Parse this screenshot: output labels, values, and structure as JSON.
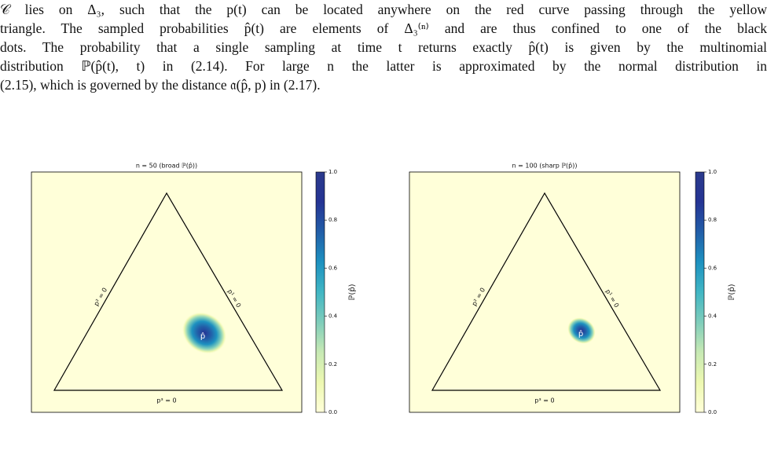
{
  "paragraph": {
    "lines": [
      "𝒞 lies on Δ₃, such that the p(t) can be located anywhere on the red curve passing through the yellow",
      "triangle. The sampled probabilities p̂(t) are elements of Δ₃⁽ⁿ⁾ and are thus confined to one of the black",
      "dots. The probability that a single sampling at time t returns exactly p̂(t) is given by the multinomial",
      "distribution ℙ(p̂(t), t) in (2.14). For large n the latter is approximated by the normal distribution in",
      "(2.15), which is governed by the distance 𝔞(p̂, p) in (2.17)."
    ]
  },
  "figures": [
    {
      "title": "n = 50 (broad ℙ(p̂))",
      "left_edge": "p² = 0",
      "right_edge": "p¹ = 0",
      "bottom_edge": "p³ = 0",
      "point": "p̂",
      "colorbar": {
        "label": "ℙ(p̂)",
        "ticks": [
          {
            "value": 0,
            "label": "0.0"
          },
          {
            "value": 0.2,
            "label": "0.2"
          },
          {
            "value": 0.4,
            "label": "0.4"
          },
          {
            "value": 0.6,
            "label": "0.6"
          },
          {
            "value": 0.8,
            "label": "0.8"
          },
          {
            "value": 1,
            "label": "1.0"
          }
        ]
      }
    },
    {
      "title": "n = 100 (sharp ℙ(p̂))",
      "left_edge": "p² = 0",
      "right_edge": "p¹ = 0",
      "bottom_edge": "p³ = 0",
      "point": "p̂",
      "colorbar": {
        "label": "ℙ(p̂)",
        "ticks": [
          {
            "value": 0,
            "label": "0.0"
          },
          {
            "value": 0.2,
            "label": "0.2"
          },
          {
            "value": 0.4,
            "label": "0.4"
          },
          {
            "value": 0.6,
            "label": "0.6"
          },
          {
            "value": 0.8,
            "label": "0.8"
          },
          {
            "value": 1,
            "label": "1.0"
          }
        ]
      }
    }
  ]
}
